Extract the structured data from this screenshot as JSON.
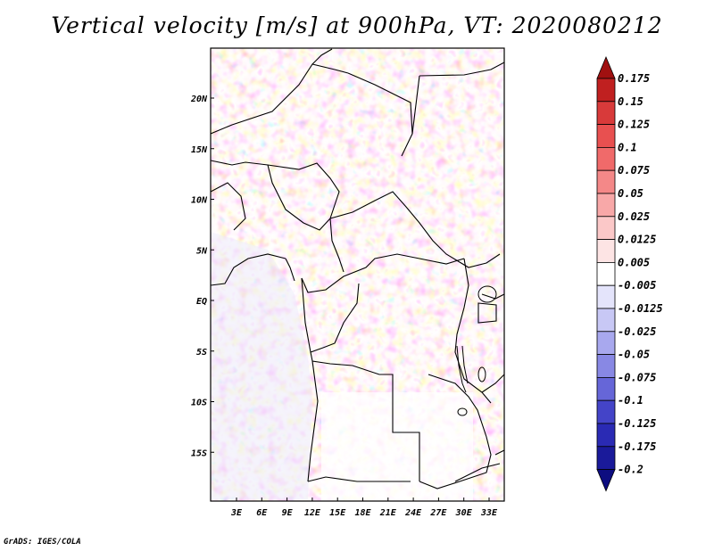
{
  "title": "Vertical velocity [m/s] at 900hPa, VT: 2020080212",
  "footer": "GrADS: IGES/COLA",
  "lat_labels": [
    "20N",
    "15N",
    "10N",
    "5N",
    "EQ",
    "5S",
    "10S",
    "15S"
  ],
  "lon_labels": [
    "3E",
    "6E",
    "9E",
    "12E",
    "15E",
    "18E",
    "21E",
    "24E",
    "27E",
    "30E",
    "33E"
  ],
  "colorbar": {
    "levels": [
      "0.175",
      "0.15",
      "0.125",
      "0.1",
      "0.075",
      "0.05",
      "0.025",
      "0.0125",
      "0.005",
      "-0.005",
      "-0.0125",
      "-0.025",
      "-0.05",
      "-0.075",
      "-0.1",
      "-0.125",
      "-0.175",
      "-0.2"
    ],
    "colors": [
      "#a01010",
      "#c02020",
      "#d83a3a",
      "#e85050",
      "#f06a6a",
      "#f48888",
      "#f8a8a8",
      "#fbc8c8",
      "#fde4e4",
      "#ffffff",
      "#e4e4fb",
      "#c8c8f5",
      "#a8a8ee",
      "#8888e4",
      "#6666d8",
      "#4444c8",
      "#2a2ab4",
      "#1a1a9a",
      "#0d0d80"
    ]
  },
  "colors": {
    "positive": "#d83a3a",
    "negative": "#4444c8",
    "border": "#000000"
  }
}
